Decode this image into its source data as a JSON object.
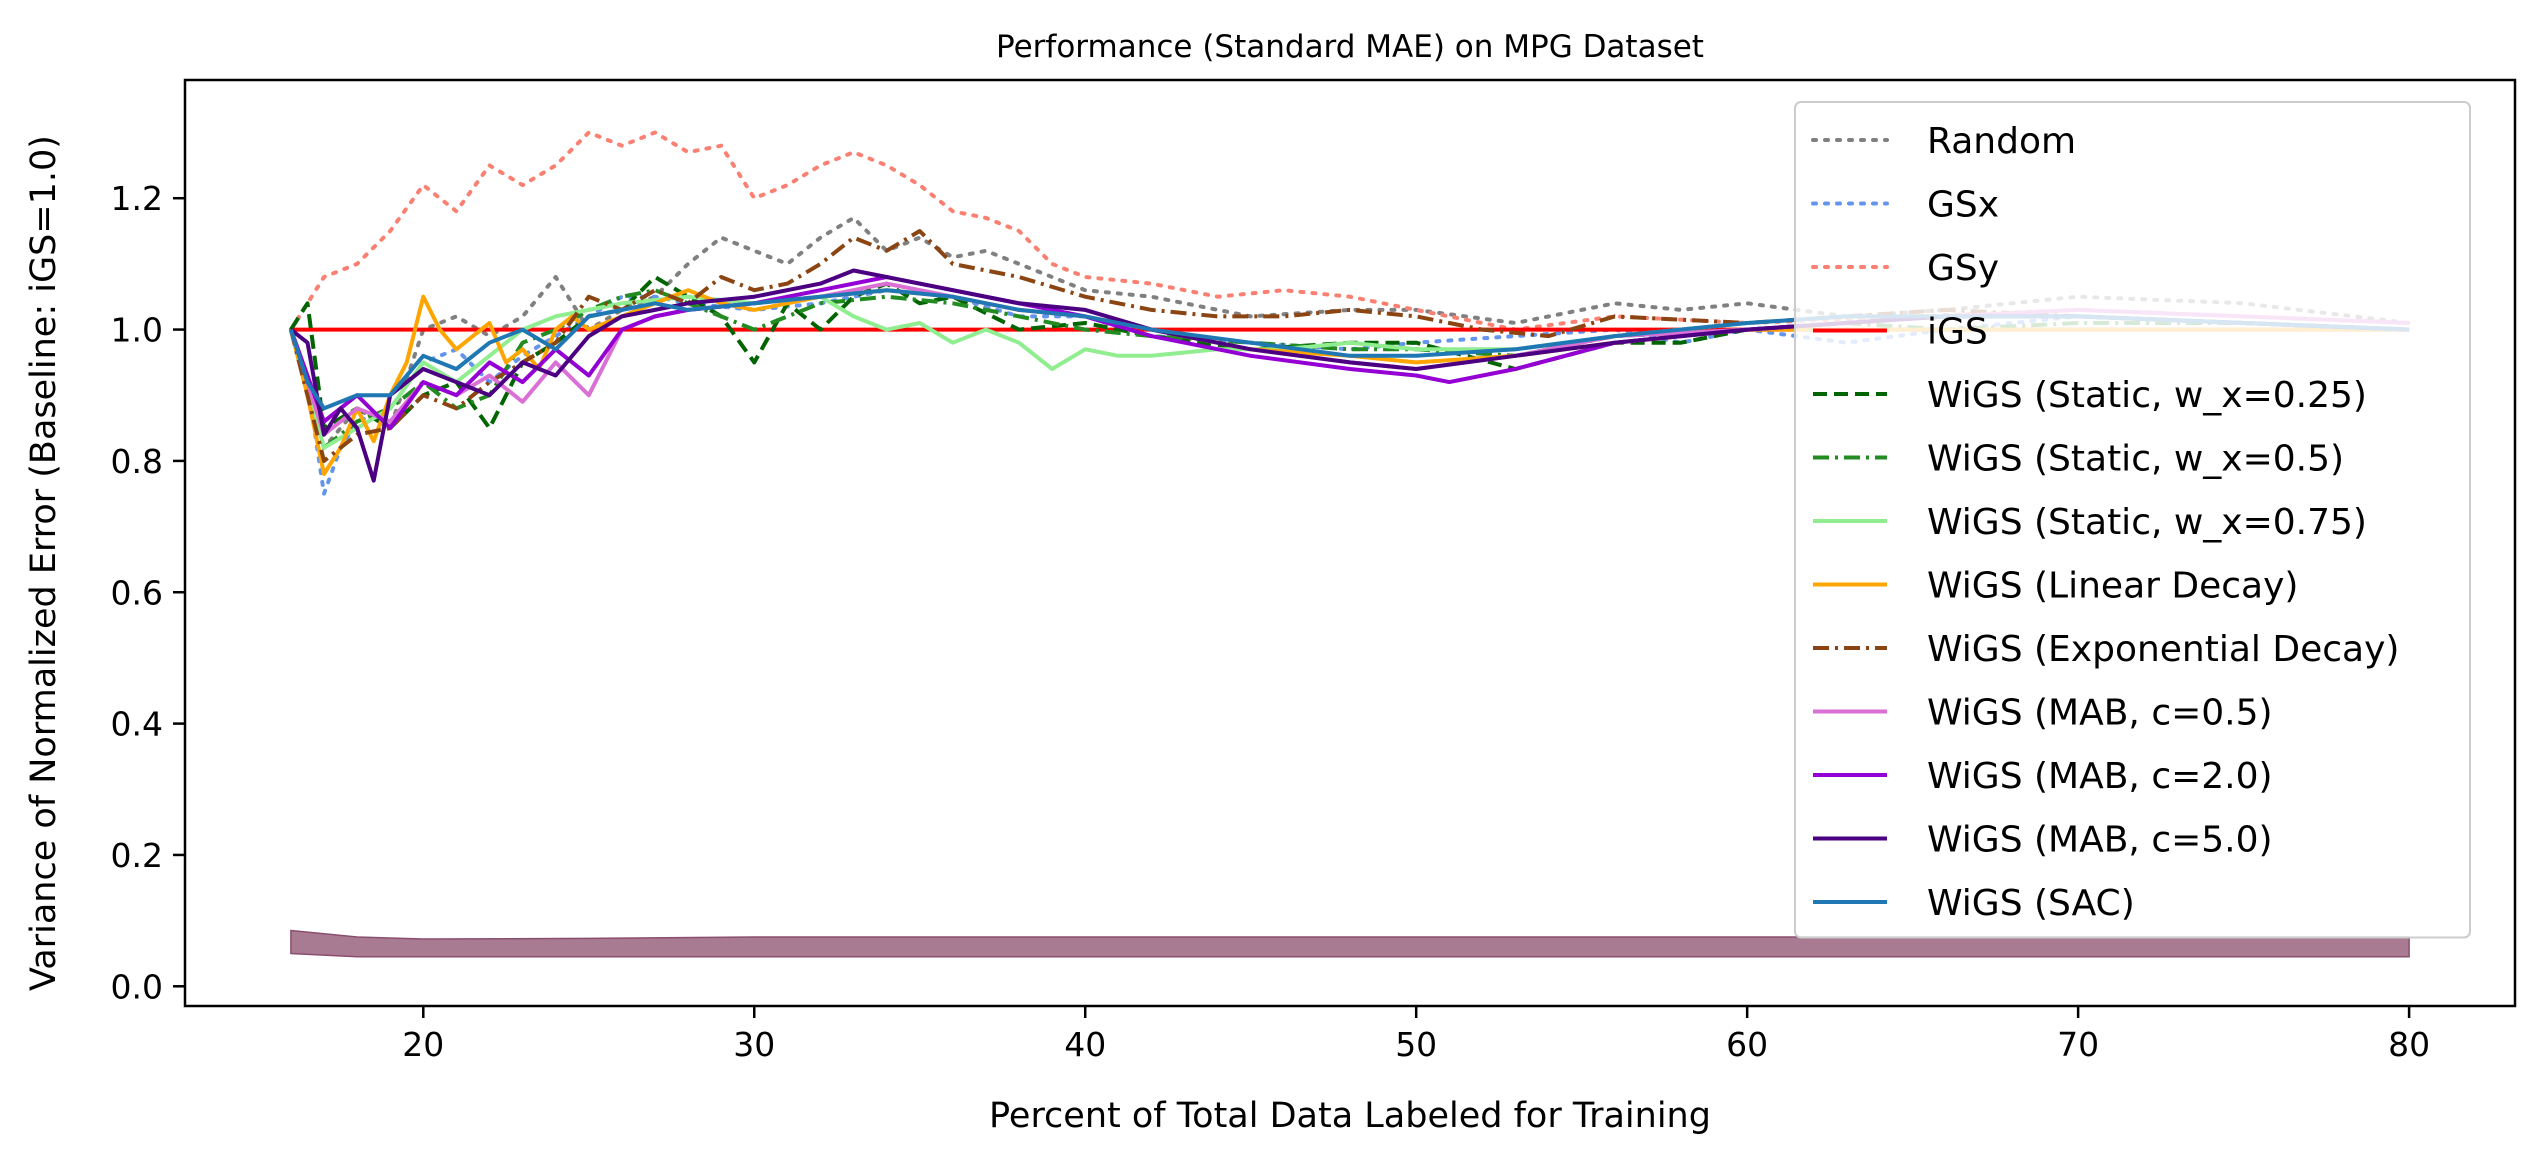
{
  "chart_data": {
    "type": "line",
    "title": "Performance (Standard MAE) on MPG Dataset",
    "xlabel": "Percent of Total Data Labeled for Training",
    "ylabel": "Variance of Normalized Error (Baseline: iGS=1.0)",
    "xlim": [
      12.8,
      83.2
    ],
    "ylim": [
      -0.03,
      1.38
    ],
    "xticks": [
      20,
      30,
      40,
      50,
      60,
      70,
      80
    ],
    "yticks": [
      0.0,
      0.2,
      0.4,
      0.6,
      0.8,
      1.0,
      1.2
    ],
    "xtick_labels": [
      "20",
      "30",
      "40",
      "50",
      "60",
      "70",
      "80"
    ],
    "ytick_labels": [
      "0.0",
      "0.2",
      "0.4",
      "0.6",
      "0.8",
      "1.0",
      "1.2"
    ],
    "grid": false,
    "legend_position": "top-right",
    "series": [
      {
        "name": "Random",
        "color": "#808080",
        "dash": "dotted",
        "x": [
          16,
          17,
          18,
          19,
          20,
          21,
          22,
          23,
          24,
          25,
          26,
          27,
          28,
          29,
          30,
          31,
          32,
          33,
          34,
          35,
          36,
          37,
          38,
          40,
          42,
          45,
          48,
          50,
          53,
          56,
          58,
          60,
          63,
          66,
          70,
          75,
          80
        ],
        "y": [
          1.0,
          0.82,
          0.88,
          0.85,
          1.0,
          1.02,
          0.99,
          1.02,
          1.08,
          1.0,
          1.03,
          1.05,
          1.1,
          1.14,
          1.12,
          1.1,
          1.14,
          1.17,
          1.12,
          1.14,
          1.11,
          1.12,
          1.1,
          1.06,
          1.05,
          1.02,
          1.03,
          1.03,
          1.01,
          1.04,
          1.03,
          1.04,
          1.02,
          1.03,
          1.05,
          1.04,
          1.01
        ]
      },
      {
        "name": "GSx",
        "color": "#6495ED",
        "dash": "dotted",
        "x": [
          16,
          16.5,
          17,
          17.5,
          18,
          19,
          20,
          21,
          22,
          23,
          24,
          25,
          26,
          27,
          28,
          30,
          32,
          34,
          36,
          38,
          40,
          42,
          45,
          48,
          50,
          53,
          56,
          58,
          60,
          63,
          66,
          70,
          75,
          80
        ],
        "y": [
          1.0,
          0.92,
          0.75,
          0.82,
          0.86,
          0.88,
          0.95,
          0.97,
          0.92,
          0.96,
          0.99,
          1.02,
          1.05,
          1.05,
          1.04,
          1.03,
          1.04,
          1.06,
          1.05,
          1.02,
          1.02,
          0.99,
          0.98,
          0.97,
          0.98,
          0.99,
          1.0,
          0.98,
          1.0,
          0.98,
          1.0,
          1.02,
          1.01,
          1.0
        ]
      },
      {
        "name": "GSy",
        "color": "#FA8072",
        "dash": "dotted",
        "x": [
          16,
          17,
          18,
          19,
          20,
          21,
          22,
          23,
          24,
          25,
          26,
          27,
          28,
          29,
          30,
          31,
          32,
          33,
          34,
          35,
          36,
          37,
          38,
          39,
          40,
          42,
          44,
          46,
          48,
          50,
          53,
          56,
          60,
          65,
          70,
          75,
          80
        ],
        "y": [
          1.0,
          1.08,
          1.1,
          1.15,
          1.22,
          1.18,
          1.25,
          1.22,
          1.25,
          1.3,
          1.28,
          1.3,
          1.27,
          1.28,
          1.2,
          1.22,
          1.25,
          1.27,
          1.25,
          1.22,
          1.18,
          1.17,
          1.15,
          1.1,
          1.08,
          1.07,
          1.05,
          1.06,
          1.05,
          1.03,
          1.0,
          1.02,
          1.01,
          1.02,
          1.03,
          1.02,
          1.01
        ]
      },
      {
        "name": "iGS",
        "color": "#FF0000",
        "dash": "solid",
        "x": [
          16,
          80
        ],
        "y": [
          1.0,
          1.0
        ]
      },
      {
        "name": "WiGS (Static, w_x=0.25)",
        "color": "#006400",
        "dash": "dashed",
        "x": [
          16,
          16.5,
          17,
          18,
          19,
          20,
          21,
          22,
          23,
          24,
          25,
          26,
          27,
          28,
          29,
          30,
          31,
          32,
          33,
          34,
          35,
          36,
          38,
          40,
          42,
          45,
          48,
          50,
          53,
          56,
          58,
          60,
          63,
          66,
          70,
          75,
          80
        ],
        "y": [
          1.0,
          1.04,
          0.85,
          0.88,
          0.85,
          0.9,
          0.92,
          0.85,
          0.95,
          0.98,
          1.02,
          1.03,
          1.08,
          1.05,
          1.02,
          0.95,
          1.04,
          1.0,
          1.05,
          1.07,
          1.04,
          1.05,
          1.0,
          1.01,
          0.99,
          0.97,
          0.98,
          0.98,
          0.94,
          0.98,
          0.98,
          1.0,
          1.01,
          1.02,
          1.02,
          1.01,
          1.0
        ]
      },
      {
        "name": "WiGS (Static, w_x=0.5)",
        "color": "#228B22",
        "dash": "dashdot",
        "x": [
          16,
          17,
          18,
          19,
          20,
          21,
          22,
          23,
          24,
          25,
          26,
          27,
          28,
          29,
          30,
          32,
          34,
          36,
          38,
          40,
          42,
          45,
          48,
          50,
          53,
          56,
          60,
          63,
          66,
          70,
          75,
          80
        ],
        "y": [
          1.0,
          0.82,
          0.86,
          0.88,
          0.92,
          0.88,
          0.9,
          0.98,
          1.0,
          1.03,
          1.05,
          1.06,
          1.04,
          1.02,
          1.0,
          1.04,
          1.05,
          1.04,
          1.02,
          1.0,
          0.99,
          0.98,
          0.97,
          0.97,
          0.96,
          0.99,
          1.0,
          1.01,
          1.0,
          1.01,
          1.01,
          1.0
        ]
      },
      {
        "name": "WiGS (Static, w_x=0.75)",
        "color": "#90EE90",
        "dash": "solid",
        "x": [
          16,
          17,
          18,
          19,
          20,
          21,
          22,
          23,
          24,
          25,
          26,
          28,
          30,
          32,
          33,
          34,
          35,
          36,
          37,
          38,
          39,
          40,
          41,
          42,
          44,
          46,
          48,
          50,
          53,
          56,
          60,
          63,
          66,
          70,
          75,
          80
        ],
        "y": [
          1.0,
          0.82,
          0.85,
          0.88,
          0.95,
          0.92,
          0.96,
          1.0,
          1.02,
          1.03,
          1.04,
          1.05,
          1.04,
          1.05,
          1.02,
          1.0,
          1.01,
          0.98,
          1.0,
          0.98,
          0.94,
          0.97,
          0.96,
          0.96,
          0.97,
          0.97,
          0.98,
          0.97,
          0.97,
          0.99,
          1.01,
          1.02,
          1.02,
          1.02,
          1.01,
          1.0
        ]
      },
      {
        "name": "WiGS (Linear Decay)",
        "color": "#FFA500",
        "dash": "solid",
        "x": [
          16,
          16.5,
          17,
          17.5,
          18,
          18.5,
          19,
          19.5,
          20,
          20.5,
          21,
          21.5,
          22,
          22.5,
          23,
          23.5,
          24,
          24.5,
          25,
          26,
          27,
          28,
          29,
          30,
          32,
          34,
          36,
          38,
          40,
          42,
          45,
          48,
          50,
          53,
          56,
          60,
          63,
          66,
          70,
          75,
          80
        ],
        "y": [
          1.0,
          0.9,
          0.78,
          0.82,
          0.88,
          0.83,
          0.9,
          0.95,
          1.05,
          1.0,
          0.97,
          0.99,
          1.01,
          0.95,
          0.97,
          0.94,
          1.0,
          1.02,
          1.0,
          1.02,
          1.04,
          1.06,
          1.04,
          1.03,
          1.05,
          1.06,
          1.05,
          1.03,
          1.02,
          1.0,
          0.97,
          0.96,
          0.95,
          0.96,
          0.98,
          1.0,
          1.0,
          1.0,
          1.0,
          1.0,
          1.0
        ]
      },
      {
        "name": "WiGS (Exponential Decay)",
        "color": "#8B4513",
        "dash": "dashdot",
        "x": [
          16,
          17,
          18,
          19,
          20,
          21,
          22,
          23,
          24,
          25,
          26,
          27,
          28,
          29,
          30,
          31,
          32,
          33,
          34,
          35,
          36,
          38,
          40,
          42,
          44,
          46,
          48,
          50,
          52,
          54,
          56,
          60,
          63,
          66,
          70,
          75,
          80
        ],
        "y": [
          1.0,
          0.8,
          0.84,
          0.85,
          0.9,
          0.88,
          0.92,
          0.95,
          0.98,
          1.05,
          1.03,
          1.06,
          1.04,
          1.08,
          1.06,
          1.07,
          1.1,
          1.14,
          1.12,
          1.15,
          1.1,
          1.08,
          1.05,
          1.03,
          1.02,
          1.02,
          1.03,
          1.02,
          1.0,
          0.99,
          1.02,
          1.01,
          1.02,
          1.03,
          1.02,
          1.01,
          1.0
        ]
      },
      {
        "name": "WiGS (MAB, c=0.5)",
        "color": "#DA70D6",
        "dash": "solid",
        "x": [
          16,
          17,
          18,
          19,
          20,
          21,
          22,
          23,
          24,
          25,
          26,
          27,
          28,
          30,
          32,
          34,
          36,
          38,
          40,
          42,
          45,
          48,
          50,
          53,
          56,
          60,
          63,
          66,
          70,
          75,
          80
        ],
        "y": [
          1.0,
          0.84,
          0.88,
          0.86,
          0.92,
          0.9,
          0.93,
          0.89,
          0.95,
          0.9,
          1.0,
          1.02,
          1.03,
          1.04,
          1.05,
          1.07,
          1.05,
          1.03,
          1.02,
          1.0,
          0.97,
          0.95,
          0.94,
          0.96,
          0.99,
          1.0,
          1.01,
          1.02,
          1.03,
          1.02,
          1.01
        ]
      },
      {
        "name": "WiGS (MAB, c=2.0)",
        "color": "#9400D3",
        "dash": "solid",
        "x": [
          16,
          17,
          18,
          19,
          20,
          21,
          22,
          23,
          24,
          25,
          26,
          27,
          28,
          30,
          32,
          34,
          36,
          38,
          40,
          42,
          45,
          48,
          50,
          51,
          53,
          56,
          60,
          63,
          66,
          70,
          75,
          80
        ],
        "y": [
          1.0,
          0.86,
          0.9,
          0.85,
          0.92,
          0.9,
          0.95,
          0.92,
          0.97,
          0.93,
          1.0,
          1.02,
          1.03,
          1.04,
          1.06,
          1.08,
          1.06,
          1.04,
          1.02,
          0.99,
          0.96,
          0.94,
          0.93,
          0.92,
          0.94,
          0.98,
          1.0,
          1.01,
          1.02,
          1.02,
          1.01,
          1.0
        ]
      },
      {
        "name": "WiGS (MAB, c=5.0)",
        "color": "#4B0082",
        "dash": "solid",
        "x": [
          16,
          16.5,
          17,
          17.5,
          18,
          18.5,
          19,
          20,
          21,
          22,
          23,
          24,
          25,
          26,
          27,
          28,
          30,
          32,
          33,
          34,
          36,
          38,
          40,
          42,
          45,
          48,
          50,
          53,
          56,
          60,
          63,
          66,
          70,
          75,
          80
        ],
        "y": [
          1.0,
          0.98,
          0.84,
          0.88,
          0.85,
          0.77,
          0.9,
          0.94,
          0.92,
          0.9,
          0.95,
          0.93,
          0.99,
          1.02,
          1.03,
          1.04,
          1.05,
          1.07,
          1.09,
          1.08,
          1.06,
          1.04,
          1.03,
          1.0,
          0.97,
          0.95,
          0.94,
          0.96,
          0.98,
          1.0,
          1.01,
          1.02,
          1.02,
          1.01,
          1.0
        ]
      },
      {
        "name": "WiGS (SAC)",
        "color": "#1F77B4",
        "dash": "solid",
        "x": [
          16,
          16.5,
          17,
          18,
          19,
          20,
          21,
          22,
          23,
          24,
          25,
          26,
          27,
          28,
          30,
          32,
          34,
          36,
          38,
          40,
          42,
          45,
          48,
          50,
          53,
          56,
          60,
          63,
          66,
          70,
          75,
          80
        ],
        "y": [
          1.0,
          0.92,
          0.88,
          0.9,
          0.9,
          0.96,
          0.94,
          0.98,
          1.0,
          0.97,
          1.02,
          1.03,
          1.04,
          1.03,
          1.04,
          1.05,
          1.06,
          1.05,
          1.03,
          1.02,
          1.0,
          0.98,
          0.96,
          0.96,
          0.97,
          0.99,
          1.01,
          1.02,
          1.02,
          1.02,
          1.01,
          1.0
        ]
      }
    ],
    "variance_band": {
      "color": "#8B4F6E",
      "x": [
        16,
        18,
        20,
        25,
        30,
        40,
        50,
        60,
        70,
        80
      ],
      "lower": [
        0.05,
        0.045,
        0.045,
        0.045,
        0.045,
        0.045,
        0.045,
        0.045,
        0.045,
        0.045
      ],
      "upper": [
        0.085,
        0.075,
        0.072,
        0.073,
        0.075,
        0.075,
        0.075,
        0.075,
        0.075,
        0.075
      ]
    }
  }
}
